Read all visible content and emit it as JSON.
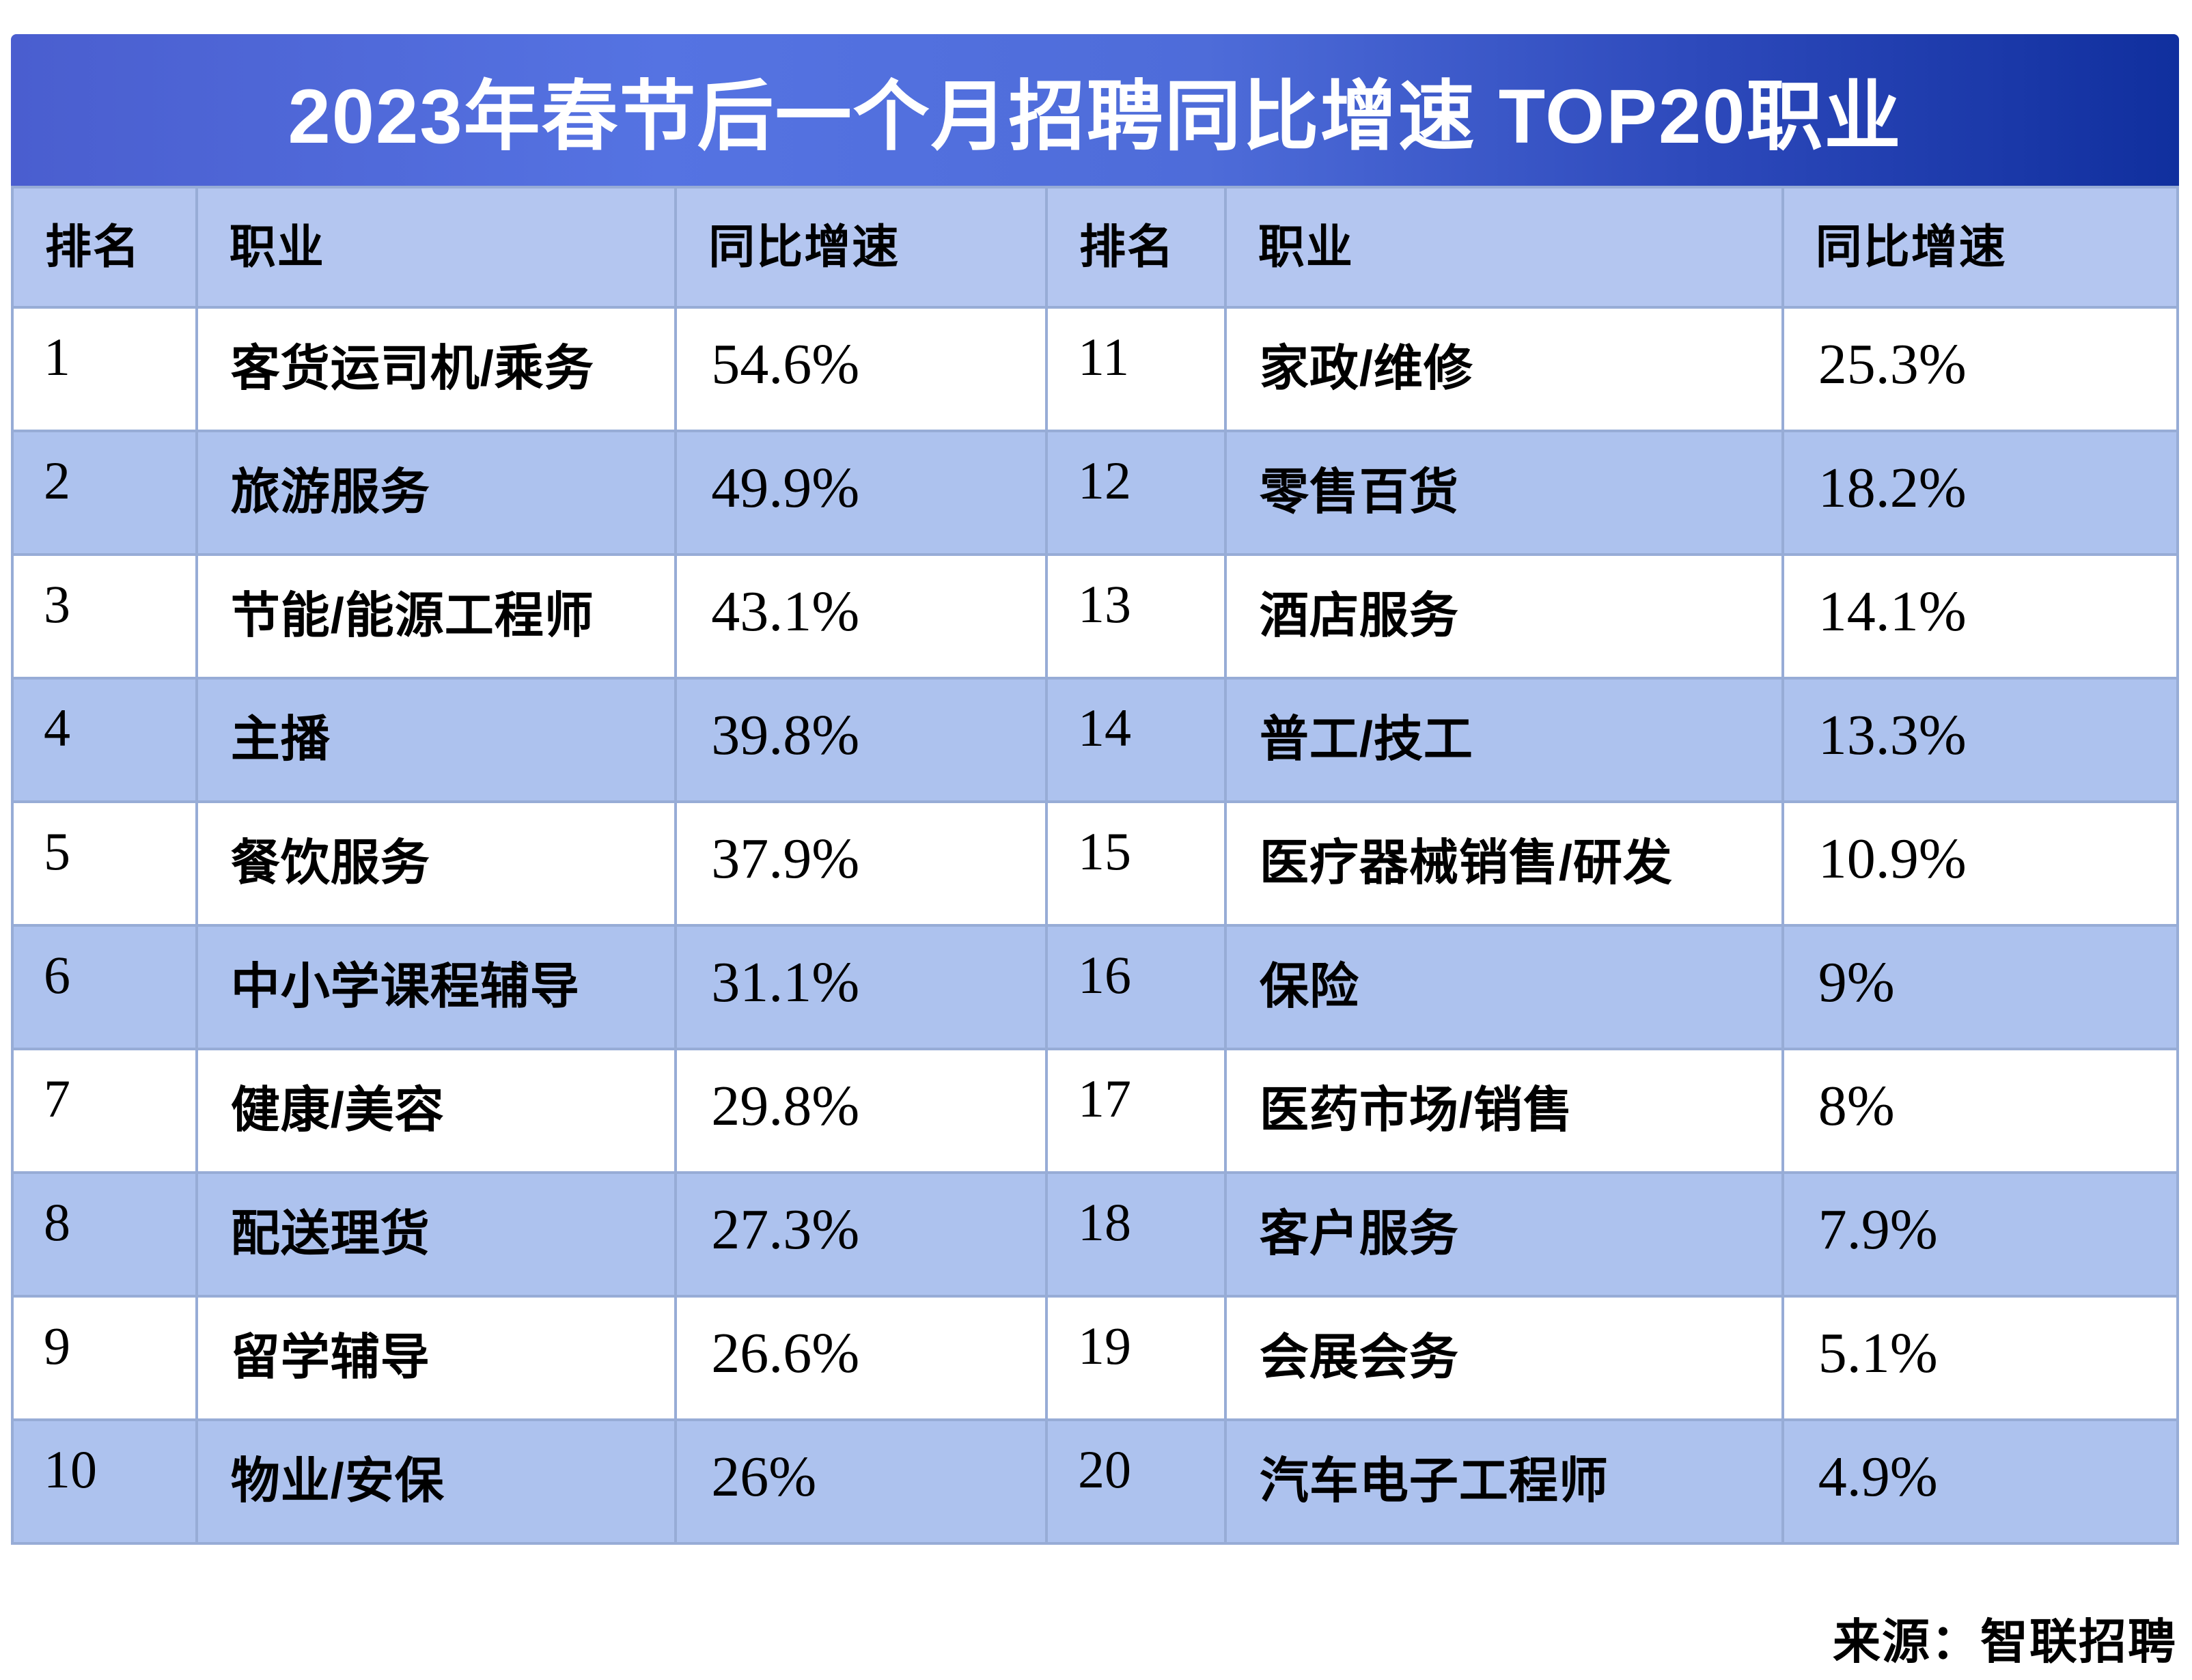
{
  "title": "2023年春节后一个月招聘同比增速 TOP20职业",
  "source": "来源：智联招聘",
  "columns": {
    "rank": "排名",
    "occupation": "职业",
    "growth": "同比增速"
  },
  "rows_left": [
    {
      "rank": "1",
      "occupation": "客货运司机/乘务",
      "growth": "54.6%"
    },
    {
      "rank": "2",
      "occupation": "旅游服务",
      "growth": "49.9%"
    },
    {
      "rank": "3",
      "occupation": "节能/能源工程师",
      "growth": "43.1%"
    },
    {
      "rank": "4",
      "occupation": "主播",
      "growth": "39.8%"
    },
    {
      "rank": "5",
      "occupation": "餐饮服务",
      "growth": "37.9%"
    },
    {
      "rank": "6",
      "occupation": "中小学课程辅导",
      "growth": "31.1%"
    },
    {
      "rank": "7",
      "occupation": "健康/美容",
      "growth": "29.8%"
    },
    {
      "rank": "8",
      "occupation": "配送理货",
      "growth": "27.3%"
    },
    {
      "rank": "9",
      "occupation": "留学辅导",
      "growth": "26.6%"
    },
    {
      "rank": "10",
      "occupation": "物业/安保",
      "growth": "26%"
    }
  ],
  "rows_right": [
    {
      "rank": "11",
      "occupation": "家政/维修",
      "growth": "25.3%"
    },
    {
      "rank": "12",
      "occupation": "零售百货",
      "growth": "18.2%"
    },
    {
      "rank": "13",
      "occupation": "酒店服务",
      "growth": "14.1%"
    },
    {
      "rank": "14",
      "occupation": "普工/技工",
      "growth": "13.3%"
    },
    {
      "rank": "15",
      "occupation": "医疗器械销售/研发",
      "growth": "10.9%"
    },
    {
      "rank": "16",
      "occupation": "保险",
      "growth": "9%"
    },
    {
      "rank": "17",
      "occupation": "医药市场/销售",
      "growth": "8%"
    },
    {
      "rank": "18",
      "occupation": "客户服务",
      "growth": "7.9%"
    },
    {
      "rank": "19",
      "occupation": "会展会务",
      "growth": "5.1%"
    },
    {
      "rank": "20",
      "occupation": "汽车电子工程师",
      "growth": "4.9%"
    }
  ],
  "chart_data": {
    "type": "table",
    "title": "2023年春节后一个月招聘同比增速 TOP20职业",
    "columns": [
      "排名",
      "职业",
      "同比增速"
    ],
    "unit": "%",
    "rows": [
      [
        1,
        "客货运司机/乘务",
        54.6
      ],
      [
        2,
        "旅游服务",
        49.9
      ],
      [
        3,
        "节能/能源工程师",
        43.1
      ],
      [
        4,
        "主播",
        39.8
      ],
      [
        5,
        "餐饮服务",
        37.9
      ],
      [
        6,
        "中小学课程辅导",
        31.1
      ],
      [
        7,
        "健康/美容",
        29.8
      ],
      [
        8,
        "配送理货",
        27.3
      ],
      [
        9,
        "留学辅导",
        26.6
      ],
      [
        10,
        "物业/安保",
        26.0
      ],
      [
        11,
        "家政/维修",
        25.3
      ],
      [
        12,
        "零售百货",
        18.2
      ],
      [
        13,
        "酒店服务",
        14.1
      ],
      [
        14,
        "普工/技工",
        13.3
      ],
      [
        15,
        "医疗器械销售/研发",
        10.9
      ],
      [
        16,
        "保险",
        9.0
      ],
      [
        17,
        "医药市场/销售",
        8.0
      ],
      [
        18,
        "客户服务",
        7.9
      ],
      [
        19,
        "会展会务",
        5.1
      ],
      [
        20,
        "汽车电子工程师",
        4.9
      ]
    ],
    "source": "智联招聘"
  },
  "colors": {
    "banner_left": "#4a5ecf",
    "banner_mid": "#5573e2",
    "banner_right": "#102f9e",
    "header_bg": "#b4c6f0",
    "stripe_bg": "#adc2ee",
    "row_bg": "#ffffff",
    "border": "#97acd6",
    "title_text": "#ffffff",
    "body_text": "#000000"
  }
}
